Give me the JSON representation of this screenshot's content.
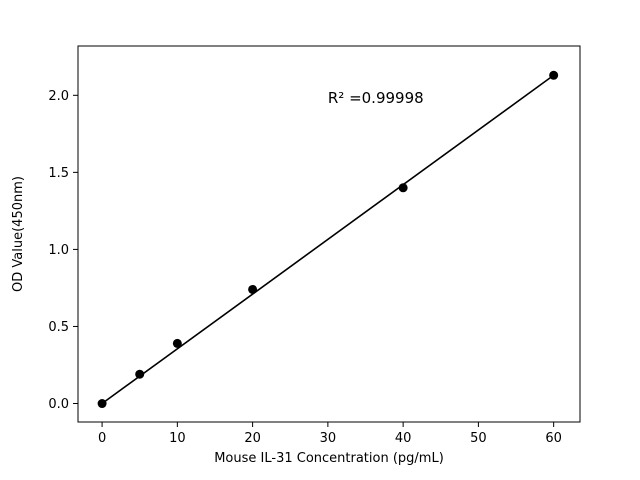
{
  "figure": {
    "background": "#ffffff",
    "frame_color": "#000000"
  },
  "chart_data": {
    "type": "scatter",
    "title": "",
    "xlabel": "Mouse IL-31 Concentration (pg/mL)",
    "ylabel": "OD Value(450nm)",
    "x": [
      0,
      5,
      10,
      20,
      40,
      60
    ],
    "y": [
      0.0,
      0.19,
      0.39,
      0.74,
      1.4,
      2.13
    ],
    "series": [
      {
        "name": "standard-curve-points",
        "marker": "circle",
        "color": "#000000",
        "x": [
          0,
          5,
          10,
          20,
          40,
          60
        ],
        "y": [
          0.0,
          0.19,
          0.39,
          0.74,
          1.4,
          2.13
        ]
      }
    ],
    "trendline": {
      "x0": 0,
      "y0": 0.0,
      "x1": 60,
      "y1": 2.13,
      "color": "#000000"
    },
    "annotation": {
      "text": "R² =0.99998",
      "x": 30,
      "y": 1.95
    },
    "xlim": [
      -3.2,
      63.5
    ],
    "ylim": [
      -0.12,
      2.32
    ],
    "xticks": [
      0,
      10,
      20,
      30,
      40,
      50,
      60
    ],
    "yticks": [
      0.0,
      0.5,
      1.0,
      1.5,
      2.0
    ],
    "grid": false,
    "legend": "none",
    "marker_color": "#000000",
    "line_color": "#000000",
    "text_color": "#000000"
  }
}
